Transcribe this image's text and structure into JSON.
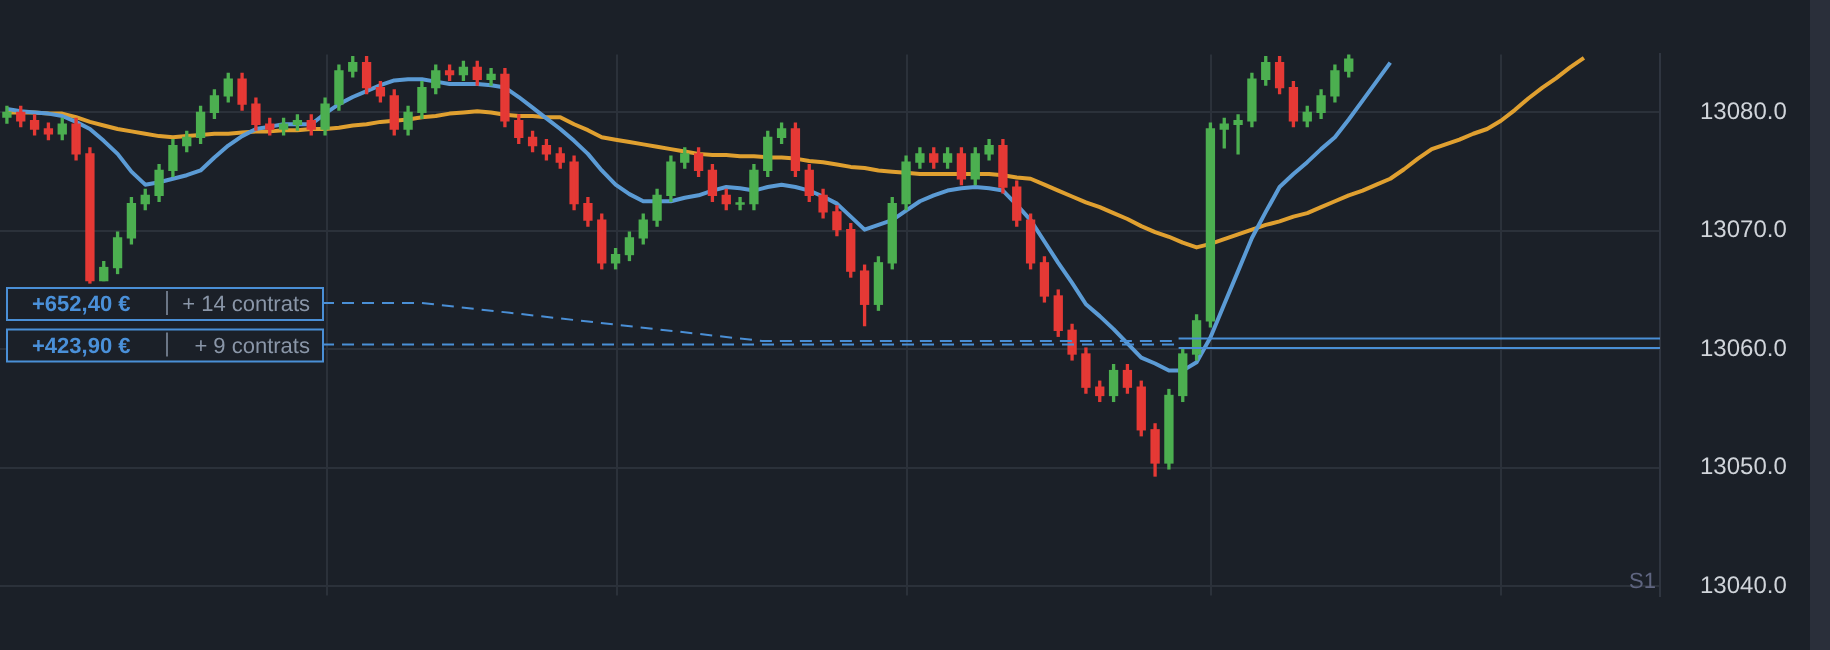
{
  "chart_data": {
    "type": "candlestick",
    "categories": [
      null,
      null,
      null,
      null,
      null,
      null,
      null,
      null,
      null,
      null,
      null,
      null,
      null,
      null,
      null,
      null,
      null,
      null,
      null,
      null,
      null,
      null,
      null,
      null,
      null,
      null,
      null,
      null,
      null,
      null,
      null,
      null,
      null,
      null,
      null,
      null,
      null,
      null,
      null,
      null,
      null,
      null,
      null,
      null,
      null,
      null,
      null,
      null,
      null,
      null,
      null,
      null,
      null,
      null,
      null,
      null,
      null,
      null,
      null,
      null,
      null,
      null,
      null,
      null,
      null,
      null,
      null,
      null,
      null,
      null,
      null,
      null,
      null,
      null,
      null,
      null,
      null,
      null,
      null,
      null,
      null,
      null,
      null,
      null,
      null,
      null,
      null,
      null,
      null,
      null,
      null,
      null,
      null,
      null,
      null,
      null,
      null,
      null,
      null,
      null,
      null,
      null,
      null,
      null,
      null,
      null,
      null,
      null,
      null,
      null,
      null,
      null,
      null,
      null,
      null,
      null,
      null,
      null,
      null,
      null
    ],
    "ohlc": [
      [
        13079.6,
        13080.5,
        13079.1,
        13080.0
      ],
      [
        13080.0,
        13080.5,
        13078.8,
        13079.3
      ],
      [
        13079.3,
        13079.8,
        13078.1,
        13078.6
      ],
      [
        13078.6,
        13079.1,
        13077.7,
        13078.2
      ],
      [
        13078.2,
        13079.5,
        13077.7,
        13079.0
      ],
      [
        13079.0,
        13079.5,
        13076.0,
        13076.5
      ],
      [
        13076.5,
        13077.0,
        13065.6,
        13065.8
      ],
      [
        13065.8,
        13067.4,
        13065.8,
        13066.9
      ],
      [
        13066.9,
        13069.9,
        13066.4,
        13069.4
      ],
      [
        13069.4,
        13072.8,
        13068.9,
        13072.3
      ],
      [
        13072.3,
        13073.5,
        13071.8,
        13073.0
      ],
      [
        13073.0,
        13075.6,
        13072.5,
        13075.1
      ],
      [
        13075.1,
        13077.7,
        13074.6,
        13077.2
      ],
      [
        13077.2,
        13078.4,
        13076.7,
        13077.9
      ],
      [
        13077.9,
        13080.5,
        13077.4,
        13080.0
      ],
      [
        13080.0,
        13081.9,
        13079.5,
        13081.4
      ],
      [
        13081.4,
        13083.3,
        13080.9,
        13082.8
      ],
      [
        13082.8,
        13083.3,
        13080.2,
        13080.7
      ],
      [
        13080.7,
        13081.2,
        13078.5,
        13079.0
      ],
      [
        13079.0,
        13079.5,
        13078.1,
        13078.6
      ],
      [
        13078.6,
        13079.5,
        13078.1,
        13079.0
      ],
      [
        13079.0,
        13079.8,
        13078.5,
        13079.3
      ],
      [
        13079.3,
        13079.8,
        13078.1,
        13078.6
      ],
      [
        13078.6,
        13081.2,
        13078.1,
        13080.7
      ],
      [
        13080.7,
        13084.0,
        13080.2,
        13083.5
      ],
      [
        13083.5,
        13084.7,
        13083.0,
        13084.2
      ],
      [
        13084.2,
        13084.7,
        13081.6,
        13082.1
      ],
      [
        13082.1,
        13082.6,
        13080.9,
        13081.4
      ],
      [
        13081.4,
        13081.9,
        13078.1,
        13078.6
      ],
      [
        13078.6,
        13080.5,
        13078.1,
        13080.0
      ],
      [
        13080.0,
        13082.6,
        13079.5,
        13082.1
      ],
      [
        13082.1,
        13084.0,
        13081.6,
        13083.5
      ],
      [
        13083.5,
        13084.0,
        13082.7,
        13083.2
      ],
      [
        13083.2,
        13084.3,
        13082.7,
        13083.8
      ],
      [
        13083.8,
        13084.3,
        13082.3,
        13082.8
      ],
      [
        13082.8,
        13083.7,
        13082.3,
        13083.2
      ],
      [
        13083.2,
        13083.7,
        13078.8,
        13079.3
      ],
      [
        13079.3,
        13079.8,
        13077.4,
        13077.9
      ],
      [
        13077.9,
        13078.4,
        13076.7,
        13077.2
      ],
      [
        13077.2,
        13077.7,
        13076.0,
        13076.5
      ],
      [
        13076.5,
        13077.0,
        13075.3,
        13075.8
      ],
      [
        13075.8,
        13076.3,
        13071.8,
        13072.3
      ],
      [
        13072.3,
        13072.8,
        13070.4,
        13070.9
      ],
      [
        13070.9,
        13071.4,
        13066.8,
        13067.3
      ],
      [
        13067.3,
        13068.5,
        13066.8,
        13068.0
      ],
      [
        13068.0,
        13069.9,
        13067.5,
        13069.4
      ],
      [
        13069.4,
        13071.4,
        13068.9,
        13070.9
      ],
      [
        13070.9,
        13073.5,
        13070.4,
        13073.0
      ],
      [
        13073.0,
        13076.3,
        13072.5,
        13075.8
      ],
      [
        13075.8,
        13077.0,
        13075.3,
        13076.5
      ],
      [
        13076.5,
        13077.0,
        13074.6,
        13075.1
      ],
      [
        13075.1,
        13075.6,
        13072.5,
        13073.0
      ],
      [
        13073.0,
        13073.5,
        13071.8,
        13072.3
      ],
      [
        13072.3,
        13072.8,
        13071.8,
        13072.3
      ],
      [
        13072.3,
        13075.6,
        13071.8,
        13075.1
      ],
      [
        13075.1,
        13078.4,
        13074.6,
        13077.9
      ],
      [
        13077.9,
        13079.1,
        13077.4,
        13078.6
      ],
      [
        13078.6,
        13079.1,
        13074.6,
        13075.1
      ],
      [
        13075.1,
        13075.6,
        13072.5,
        13073.0
      ],
      [
        13073.0,
        13073.5,
        13071.1,
        13071.6
      ],
      [
        13071.6,
        13072.1,
        13069.6,
        13070.1
      ],
      [
        13070.1,
        13070.6,
        13066.1,
        13066.6
      ],
      [
        13066.6,
        13067.1,
        13062.0,
        13063.8
      ],
      [
        13063.8,
        13067.8,
        13063.3,
        13067.3
      ],
      [
        13067.3,
        13072.8,
        13066.8,
        13072.3
      ],
      [
        13072.3,
        13076.3,
        13071.8,
        13075.8
      ],
      [
        13075.8,
        13077.0,
        13075.3,
        13076.5
      ],
      [
        13076.5,
        13077.0,
        13075.3,
        13075.8
      ],
      [
        13075.8,
        13077.0,
        13075.3,
        13076.5
      ],
      [
        13076.5,
        13077.0,
        13073.9,
        13074.4
      ],
      [
        13074.4,
        13077.0,
        13073.9,
        13076.5
      ],
      [
        13076.5,
        13077.7,
        13076.0,
        13077.2
      ],
      [
        13077.2,
        13077.7,
        13073.2,
        13073.7
      ],
      [
        13073.7,
        13074.2,
        13070.4,
        13070.9
      ],
      [
        13070.9,
        13071.4,
        13066.8,
        13067.3
      ],
      [
        13067.3,
        13067.8,
        13064.0,
        13064.5
      ],
      [
        13064.5,
        13065.0,
        13061.1,
        13061.6
      ],
      [
        13061.6,
        13062.1,
        13059.1,
        13059.6
      ],
      [
        13059.6,
        13060.1,
        13056.3,
        13056.8
      ],
      [
        13056.8,
        13057.3,
        13055.6,
        13056.1
      ],
      [
        13056.1,
        13058.7,
        13055.6,
        13058.2
      ],
      [
        13058.2,
        13058.7,
        13056.3,
        13056.8
      ],
      [
        13056.8,
        13057.3,
        13052.7,
        13053.2
      ],
      [
        13053.2,
        13053.7,
        13049.3,
        13050.4
      ],
      [
        13050.4,
        13056.6,
        13049.9,
        13056.1
      ],
      [
        13056.1,
        13060.1,
        13055.6,
        13059.6
      ],
      [
        13059.6,
        13062.9,
        13059.1,
        13062.4
      ],
      [
        13062.4,
        13079.1,
        13061.9,
        13078.6
      ],
      [
        13078.6,
        13079.5,
        13077.0,
        13079.0
      ],
      [
        13079.0,
        13079.8,
        13076.5,
        13079.3
      ],
      [
        13079.3,
        13083.3,
        13078.8,
        13082.8
      ],
      [
        13082.8,
        13084.7,
        13082.3,
        13084.2
      ],
      [
        13084.2,
        13084.7,
        13081.6,
        13082.1
      ],
      [
        13082.1,
        13082.6,
        13078.8,
        13079.3
      ],
      [
        13079.3,
        13080.5,
        13078.8,
        13080.0
      ],
      [
        13080.0,
        13081.9,
        13079.5,
        13081.4
      ],
      [
        13081.4,
        13084.0,
        13080.9,
        13083.5
      ],
      [
        13083.5,
        13084.9,
        13083.0,
        13084.5
      ],
      null,
      null,
      null,
      null,
      null,
      null,
      null,
      null,
      null,
      null,
      null,
      null,
      null,
      null,
      null,
      null,
      null,
      null,
      null,
      null,
      null,
      null
    ],
    "series": [
      {
        "type": "line",
        "color": "#5b9bd5",
        "values": [
          13080.3,
          13080.1,
          13080.0,
          13079.9,
          13079.7,
          13079.2,
          13078.6,
          13077.6,
          13076.5,
          13075.0,
          13073.9,
          13074.1,
          13074.4,
          13074.7,
          13075.1,
          13076.2,
          13077.2,
          13078.0,
          13078.6,
          13078.8,
          13079.0,
          13079.0,
          13079.0,
          13079.9,
          13080.7,
          13081.3,
          13081.8,
          13082.3,
          13082.7,
          13082.8,
          13082.8,
          13082.6,
          13082.4,
          13082.4,
          13082.4,
          13082.3,
          13082.1,
          13081.3,
          13080.4,
          13079.5,
          13078.6,
          13077.6,
          13076.5,
          13075.1,
          13073.9,
          13073.1,
          13072.5,
          13072.5,
          13072.5,
          13072.8,
          13073.0,
          13073.4,
          13073.7,
          13073.6,
          13073.4,
          13073.7,
          13073.9,
          13073.7,
          13073.4,
          13072.9,
          13072.3,
          13071.2,
          13070.1,
          13070.5,
          13070.9,
          13071.7,
          13072.5,
          13073.0,
          13073.4,
          13073.6,
          13073.7,
          13073.6,
          13073.4,
          13072.2,
          13070.9,
          13069.1,
          13067.3,
          13065.6,
          13063.8,
          13062.8,
          13061.7,
          13060.5,
          13059.3,
          13058.8,
          13058.2,
          13058.2,
          13058.9,
          13061.0,
          13063.8,
          13066.6,
          13069.4,
          13071.6,
          13073.7,
          13074.8,
          13075.8,
          13076.9,
          13077.9,
          13079.4,
          13081.0,
          13082.6,
          13084.2,
          null,
          null,
          null,
          null,
          null,
          null,
          null,
          null,
          null,
          null,
          null,
          null,
          null,
          null,
          null,
          null,
          null,
          null,
          null
        ]
      },
      {
        "type": "line",
        "color": "#e0a030",
        "values": [
          13080.0,
          13080.0,
          13080.0,
          13079.9,
          13079.9,
          13079.6,
          13079.2,
          13078.9,
          13078.6,
          13078.4,
          13078.2,
          13078.0,
          13077.9,
          13078.0,
          13078.1,
          13078.2,
          13078.2,
          13078.3,
          13078.4,
          13078.4,
          13078.5,
          13078.5,
          13078.6,
          13078.6,
          13078.7,
          13078.9,
          13079.0,
          13079.2,
          13079.3,
          13079.4,
          13079.6,
          13079.7,
          13079.9,
          13080.0,
          13080.1,
          13080.0,
          13079.8,
          13079.7,
          13079.7,
          13079.6,
          13079.6,
          13079.0,
          13078.5,
          13077.9,
          13077.7,
          13077.5,
          13077.3,
          13077.1,
          13076.9,
          13076.7,
          13076.5,
          13076.4,
          13076.4,
          13076.3,
          13076.3,
          13076.2,
          13076.2,
          13076.1,
          13075.9,
          13075.8,
          13075.6,
          13075.4,
          13075.3,
          13075.1,
          13075.0,
          13074.9,
          13074.8,
          13074.8,
          13074.8,
          13074.8,
          13074.8,
          13074.8,
          13074.7,
          13074.5,
          13074.4,
          13073.9,
          13073.4,
          13072.9,
          13072.4,
          13072.0,
          13071.5,
          13071.0,
          13070.4,
          13069.9,
          13069.5,
          13069.0,
          13068.6,
          13068.9,
          13069.3,
          13069.7,
          13070.1,
          13070.5,
          13070.8,
          13071.2,
          13071.5,
          13072.0,
          13072.5,
          13073.0,
          13073.4,
          13073.9,
          13074.4,
          13075.2,
          13076.1,
          13076.9,
          13077.3,
          13077.7,
          13078.2,
          13078.6,
          13079.3,
          13080.2,
          13081.2,
          13082.1,
          13082.9,
          13083.8,
          13084.6,
          null,
          null,
          null,
          null,
          null
        ]
      }
    ],
    "ylim": [
      13039.2,
      13084.9
    ],
    "yticks": [
      {
        "value": 13040,
        "label": "13040.0"
      },
      {
        "value": 13050,
        "label": "13050.0"
      },
      {
        "value": 13060,
        "label": "13060.0"
      },
      {
        "value": 13070,
        "label": "13070.0"
      },
      {
        "value": 13080,
        "label": "13080.0"
      }
    ],
    "grid": true,
    "legend": false,
    "marker": "none",
    "line_style": "solid",
    "tick_labels": "y",
    "ref_lines": [
      {
        "axis": "y",
        "value": 13060.7,
        "label": "+652,40 €",
        "color": "#4a8fd6",
        "line_style": "dashed"
      },
      {
        "axis": "y",
        "value": 13060.4,
        "label": "+423,90 €",
        "color": "#4a8fd6",
        "line_style": "dashed"
      },
      {
        "axis": "y",
        "value": 13060.9,
        "color": "#4a8fd6",
        "line_style": "solid"
      },
      {
        "axis": "y",
        "value": 13060.1,
        "color": "#4a8fd6",
        "line_style": "solid"
      }
    ],
    "annotations": [
      "+ 14 contrats",
      "+ 9 contrats",
      "S1"
    ]
  }
}
